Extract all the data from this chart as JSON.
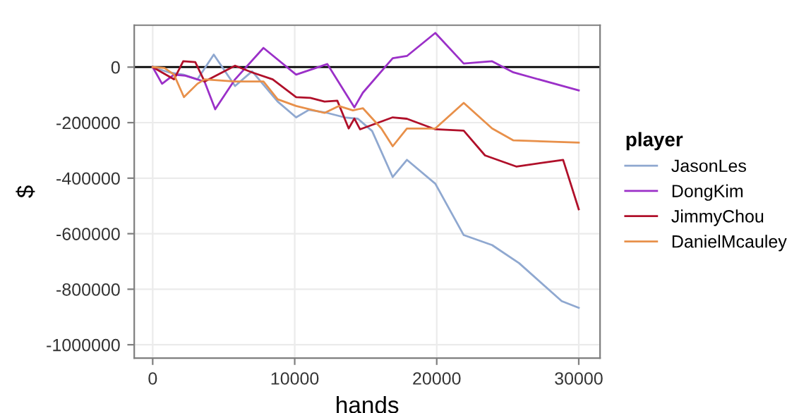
{
  "chart_data": {
    "type": "line",
    "xlabel": "hands",
    "ylabel": "$",
    "legend_title": "player",
    "legend": "right",
    "grid": true,
    "xlim": [
      -1300,
      31500
    ],
    "xticks": [
      0,
      10000,
      20000,
      30000
    ],
    "ylim": [
      -1048000,
      151000
    ],
    "yticks": [
      -1000000,
      -800000,
      -600000,
      -400000,
      -200000,
      0
    ],
    "ref_lines": [
      {
        "axis": "y",
        "value": 0,
        "color": "#000000"
      }
    ],
    "series": [
      {
        "name": "JasonLes",
        "color": "#8fa8d0",
        "x": [
          0,
          1150,
          2150,
          3150,
          4300,
          5800,
          7000,
          8800,
          10100,
          11000,
          12300,
          13500,
          14450,
          15450,
          16900,
          17900,
          19900,
          21900,
          23900,
          25800,
          28800,
          30000
        ],
        "values": [
          0,
          -19000,
          -27000,
          -44000,
          45000,
          -68000,
          -15000,
          -124000,
          -181000,
          -154000,
          -165000,
          -181000,
          -186000,
          -230000,
          -396000,
          -334000,
          -420000,
          -605000,
          -641000,
          -706000,
          -843000,
          -867000
        ]
      },
      {
        "name": "DongKim",
        "color": "#9b30c8",
        "x": [
          0,
          660,
          1500,
          2300,
          3650,
          4400,
          5800,
          7800,
          10100,
          12300,
          14200,
          14800,
          16900,
          17900,
          19900,
          21900,
          23900,
          25400,
          30000
        ],
        "values": [
          0,
          -60000,
          -27000,
          -31000,
          -52000,
          -152000,
          -44000,
          69000,
          -27000,
          11000,
          -145000,
          -92000,
          32000,
          40000,
          123000,
          13000,
          21000,
          -19000,
          -84000
        ]
      },
      {
        "name": "JimmyChou",
        "color": "#b0102a",
        "x": [
          0,
          1500,
          2150,
          3000,
          3650,
          5800,
          7000,
          8450,
          10100,
          11100,
          12100,
          13000,
          13800,
          14200,
          14600,
          16900,
          17900,
          19900,
          21900,
          23400,
          25600,
          28900,
          30000
        ],
        "values": [
          0,
          -44000,
          21000,
          18000,
          -52000,
          5000,
          -19000,
          -44000,
          -108000,
          -111000,
          -124000,
          -121000,
          -221000,
          -185000,
          -224000,
          -181000,
          -186000,
          -224000,
          -229000,
          -318000,
          -358000,
          -334000,
          -512000
        ]
      },
      {
        "name": "DanielMcauley",
        "color": "#e8904a",
        "x": [
          0,
          830,
          1500,
          2200,
          3150,
          3650,
          5800,
          7800,
          8800,
          10100,
          12100,
          13100,
          14100,
          14800,
          16100,
          16900,
          17900,
          19900,
          21900,
          23900,
          25400,
          30000
        ],
        "values": [
          0,
          -3000,
          -27000,
          -108000,
          -60000,
          -44000,
          -52000,
          -52000,
          -116000,
          -140000,
          -165000,
          -140000,
          -156000,
          -148000,
          -221000,
          -285000,
          -221000,
          -221000,
          -129000,
          -221000,
          -264000,
          -272000
        ]
      }
    ]
  }
}
